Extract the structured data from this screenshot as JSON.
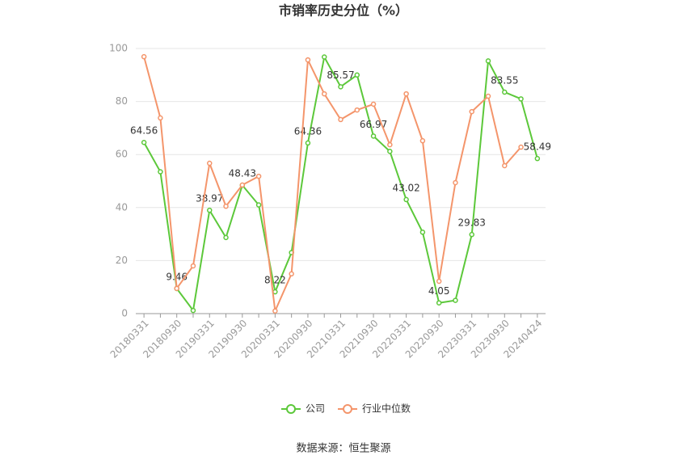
{
  "chart_data": {
    "type": "line",
    "title": "市销率历史分位（%）",
    "source": "数据来源：恒生聚源",
    "categories": [
      "20180331",
      null,
      "20180930",
      null,
      "20190331",
      null,
      "20190930",
      null,
      "20200331",
      null,
      "20200930",
      null,
      "20210331",
      null,
      "20210930",
      null,
      "20220331",
      null,
      "20220930",
      null,
      "20230331",
      null,
      "20230930",
      null,
      "20240424"
    ],
    "series": [
      {
        "name": "公司",
        "color": "#5cc83a",
        "values": [
          64.56,
          53.5,
          9.46,
          1.2,
          38.97,
          28.7,
          48.43,
          41,
          8.22,
          23,
          64.36,
          96.8,
          85.57,
          90,
          66.97,
          61.2,
          43.02,
          30.7,
          4.05,
          5,
          29.83,
          95.3,
          83.55,
          81,
          58.49
        ],
        "value_labels": [
          "64.56",
          null,
          "9.46",
          null,
          "38.97",
          null,
          "48.43",
          null,
          "8.22",
          null,
          "64.36",
          null,
          "85.57",
          null,
          "66.97",
          null,
          "43.02",
          null,
          "4.05",
          null,
          "29.83",
          null,
          "83.55",
          null,
          "58.49"
        ]
      },
      {
        "name": "行业中位数",
        "color": "#f4956b",
        "values": [
          96.9,
          73.8,
          9.5,
          18,
          56.7,
          40.5,
          48.5,
          51.8,
          1,
          15,
          95.7,
          82.9,
          73.2,
          76.8,
          79,
          63.7,
          82.9,
          65.2,
          12.2,
          49.4,
          76.2,
          82,
          55.8,
          62.8,
          null
        ]
      }
    ],
    "ylim": [
      0,
      100
    ],
    "yticks": [
      0,
      20,
      40,
      60,
      80,
      100
    ],
    "grid": true,
    "legend": "bottom"
  }
}
